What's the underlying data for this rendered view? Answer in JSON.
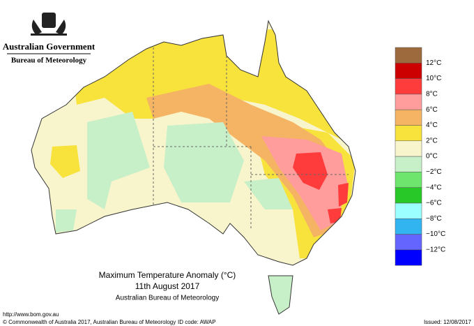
{
  "header": {
    "government": "Australian Government",
    "agency": "Bureau of Meteorology"
  },
  "legend": {
    "labels": [
      "12°C",
      "10°C",
      "8°C",
      "6°C",
      "4°C",
      "2°C",
      "0°C",
      "−2°C",
      "−4°C",
      "−6°C",
      "−8°C",
      "−10°C",
      "−12°C"
    ],
    "colors": [
      "#9c6a3c",
      "#cc0000",
      "#ff3c3c",
      "#ff9c9c",
      "#f5b464",
      "#f8e23c",
      "#f8f5cc",
      "#c8f0c8",
      "#6ee66e",
      "#28c828",
      "#9cffff",
      "#32b4f0",
      "#6464ff",
      "#0000ff"
    ]
  },
  "caption": {
    "title": "Maximum Temperature Anomaly (°C)",
    "date": "11th August 2017",
    "source": "Australian Bureau of Meteorology"
  },
  "footer": {
    "url": "http://www.bom.gov.au",
    "copyright": "© Commonwealth of Australia 2017, Australian Bureau of Meteorology",
    "id_code": "ID code: AWAP",
    "issued": "Issued: 12/08/2017"
  }
}
